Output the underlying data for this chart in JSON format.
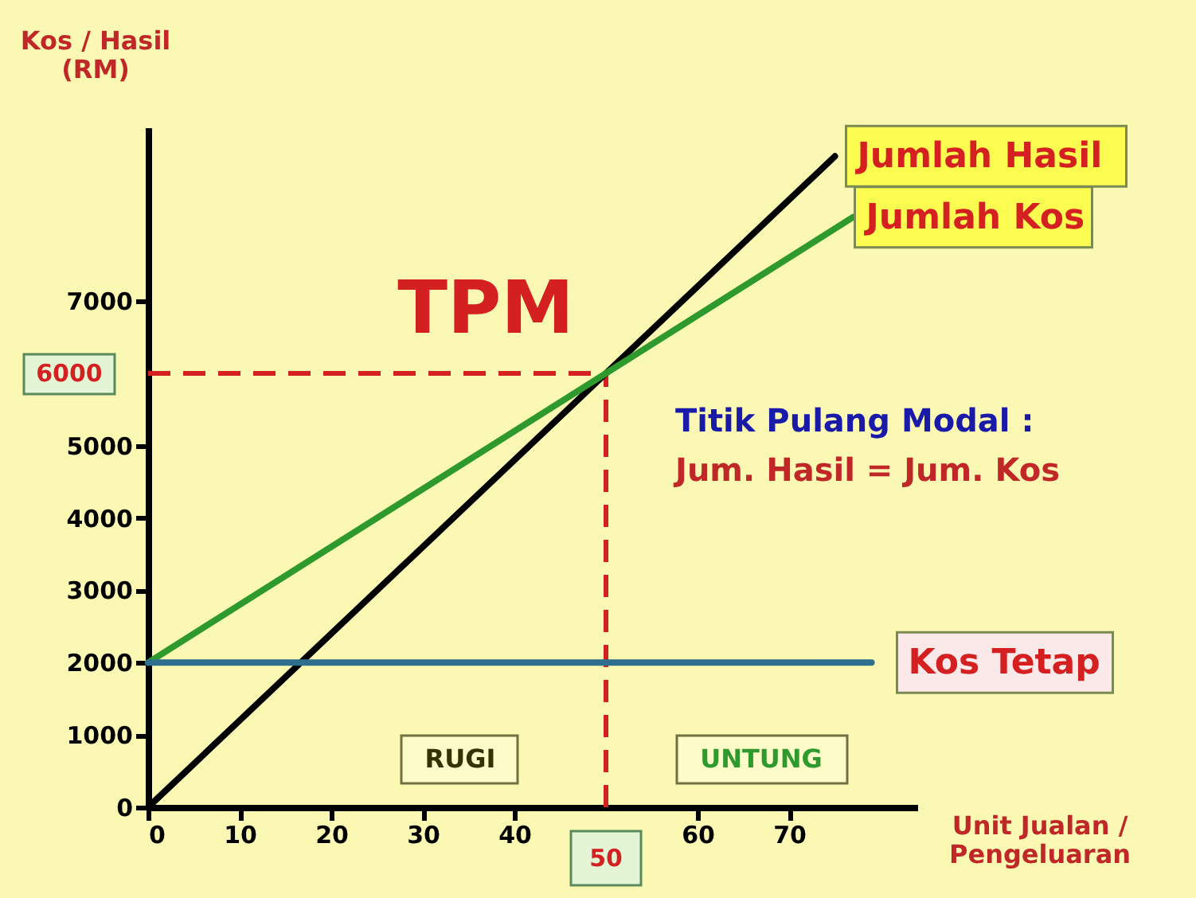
{
  "chart_data": {
    "type": "line",
    "ylabel": "Kos / Hasil\n(RM)",
    "xlabel": "Unit Jualan /\nPengeluaran",
    "xlim": [
      0,
      84
    ],
    "ylim": [
      0,
      9400
    ],
    "xticks": [
      0,
      10,
      20,
      30,
      40,
      60,
      70
    ],
    "yticks": [
      0,
      1000,
      2000,
      3000,
      4000,
      5000,
      7000
    ],
    "series": [
      {
        "name": "Jumlah Hasil",
        "color": "#000000",
        "x": [
          0,
          75
        ],
        "values": [
          0,
          9000
        ]
      },
      {
        "name": "Jumlah Kos",
        "color": "#2e9a2e",
        "x": [
          0,
          77
        ],
        "values": [
          2000,
          8160
        ]
      },
      {
        "name": "Kos Tetap",
        "color": "#2e6f8e",
        "x": [
          0,
          79
        ],
        "values": [
          2000,
          2000
        ]
      }
    ],
    "ref_lines": [
      {
        "axis": "y",
        "value": 6000,
        "label": "6000",
        "color": "#d42020",
        "line_style": "dashed"
      },
      {
        "axis": "x",
        "value": 50,
        "label": "50",
        "color": "#d42020",
        "line_style": "dashed"
      }
    ],
    "annotations": [
      "TPM",
      "Titik Pulang Modal :",
      "Jum. Hasil = Jum. Kos",
      "RUGI",
      "UNTUNG"
    ],
    "grid": false,
    "legend": false,
    "marker": "none",
    "line_style": "solid"
  }
}
